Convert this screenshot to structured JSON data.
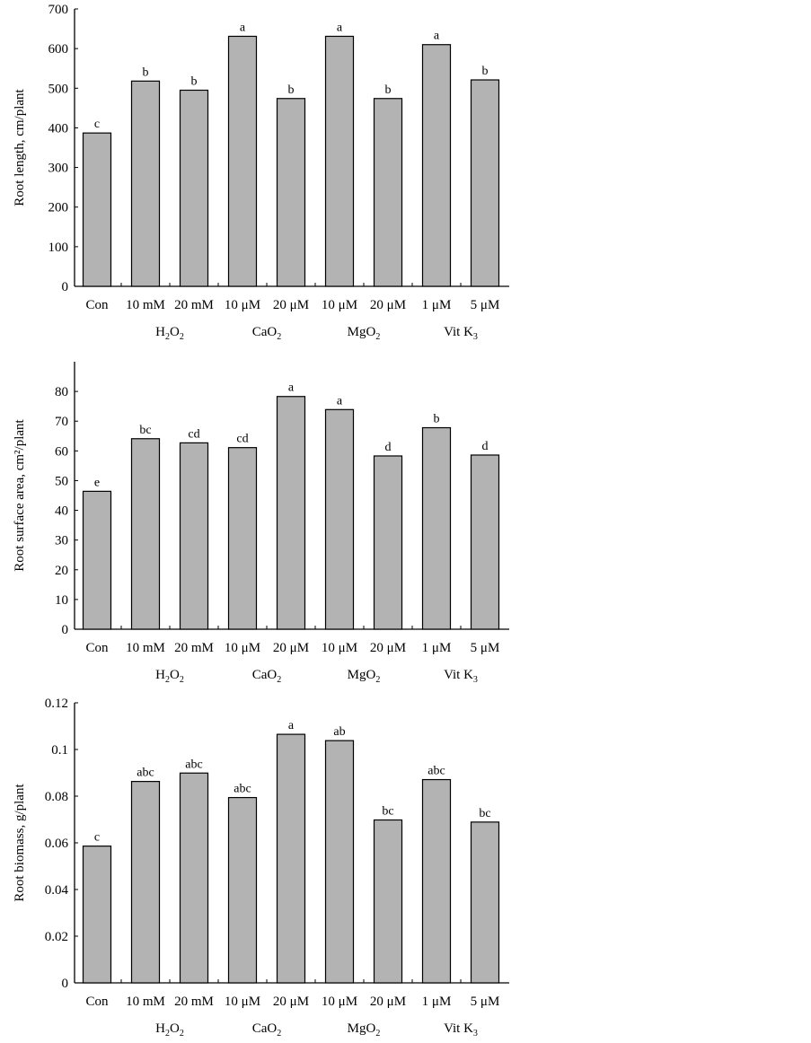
{
  "chart_data": [
    {
      "type": "bar",
      "ylabel": "Root length, cm/plant",
      "ylim": [
        0,
        700
      ],
      "yticks": [
        0,
        100,
        200,
        300,
        400,
        500,
        600,
        700
      ],
      "categories": [
        "Con",
        "10 mM",
        "20 mM",
        "10 μM",
        "20 μM",
        "10 μM",
        "20 μM",
        "1 μM",
        "5 μM"
      ],
      "values": [
        387,
        518,
        495,
        631,
        474,
        631,
        474,
        610,
        521
      ],
      "letters": [
        "c",
        "b",
        "b",
        "a",
        "b",
        "a",
        "b",
        "a",
        "b"
      ],
      "groups": [
        {
          "base": "H",
          "sub1": "2",
          "mid": "O",
          "sub2": "2"
        },
        {
          "base": "CaO",
          "sub1": "2",
          "mid": "",
          "sub2": ""
        },
        {
          "base": "MgO",
          "sub1": "2",
          "mid": "",
          "sub2": ""
        },
        {
          "base": "Vit K",
          "sub1": "3",
          "mid": "",
          "sub2": ""
        }
      ]
    },
    {
      "type": "bar",
      "ylabel": "Root surface area, cm²/plant",
      "ylim": [
        0,
        90
      ],
      "yticks": [
        0,
        10,
        20,
        30,
        40,
        50,
        60,
        70,
        80
      ],
      "categories": [
        "Con",
        "10 mM",
        "20 mM",
        "10 μM",
        "20 μM",
        "10 μM",
        "20 μM",
        "1 μM",
        "5 μM"
      ],
      "values": [
        46.4,
        64.1,
        62.7,
        61.1,
        78.3,
        73.9,
        58.3,
        67.8,
        58.6
      ],
      "letters": [
        "e",
        "bc",
        "cd",
        "cd",
        "a",
        "a",
        "d",
        "b",
        "d"
      ],
      "groups": [
        {
          "base": "H",
          "sub1": "2",
          "mid": "O",
          "sub2": "2"
        },
        {
          "base": "CaO",
          "sub1": "2",
          "mid": "",
          "sub2": ""
        },
        {
          "base": "MgO",
          "sub1": "2",
          "mid": "",
          "sub2": ""
        },
        {
          "base": "Vit K",
          "sub1": "3",
          "mid": "",
          "sub2": ""
        }
      ]
    },
    {
      "type": "bar",
      "ylabel": "Root biomass, g/plant",
      "ylim": [
        0,
        0.12
      ],
      "yticks": [
        "0",
        "0.02",
        "0.04",
        "0.06",
        "0.08",
        "0.1",
        "0.12"
      ],
      "categories": [
        "Con",
        "10 mM",
        "20 mM",
        "10 μM",
        "20 μM",
        "10 μM",
        "20 μM",
        "1 μM",
        "5 μM"
      ],
      "values": [
        0.0586,
        0.0863,
        0.0899,
        0.0794,
        0.1065,
        0.1038,
        0.0698,
        0.0871,
        0.0689
      ],
      "letters": [
        "c",
        "abc",
        "abc",
        "abc",
        "a",
        "ab",
        "bc",
        "abc",
        "bc"
      ],
      "groups": [
        {
          "base": "H",
          "sub1": "2",
          "mid": "O",
          "sub2": "2"
        },
        {
          "base": "CaO",
          "sub1": "2",
          "mid": "",
          "sub2": ""
        },
        {
          "base": "MgO",
          "sub1": "2",
          "mid": "",
          "sub2": ""
        },
        {
          "base": "Vit K",
          "sub1": "3",
          "mid": "",
          "sub2": ""
        }
      ]
    }
  ],
  "colors": {
    "bar_fill": "#b3b3b3",
    "bar_stroke": "#000000",
    "axis": "#000000"
  }
}
